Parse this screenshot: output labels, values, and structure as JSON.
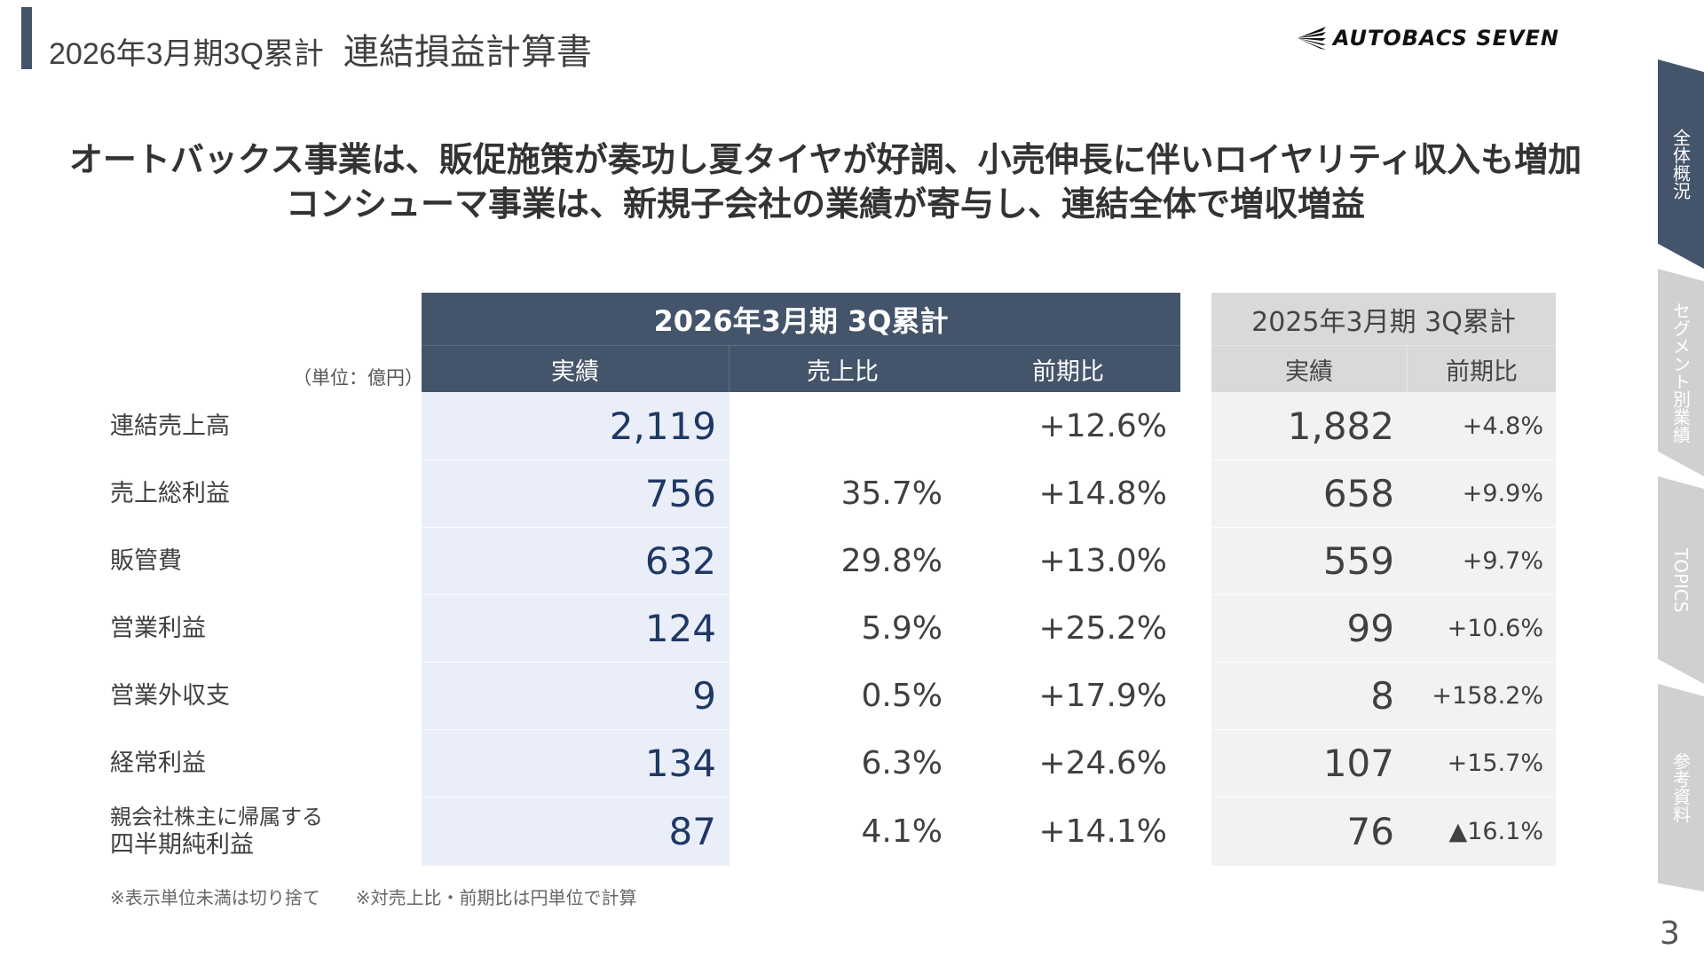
{
  "header": {
    "period": "2026年3月期3Q累計",
    "title": "連結損益計算書",
    "logo_text": "AUTOBACS SEVEN"
  },
  "headline": [
    "オートバックス事業は、販促施策が奏功し夏タイヤが好調、小売伸長に伴いロイヤリティ収入も増加",
    "コンシューマ事業は、新規子会社の業績が寄与し、連結全体で増収増益"
  ],
  "table": {
    "unit": "（単位：億円）",
    "current_header": "2026年3月期 3Q累計",
    "current_cols": [
      "実績",
      "売上比",
      "前期比"
    ],
    "prior_header": "2025年3月期 3Q累計",
    "prior_cols": [
      "実績",
      "前期比"
    ],
    "rows": [
      {
        "label": [
          "連結売上高"
        ],
        "actual": "2,119",
        "ratio": "",
        "yoy": "+12.6%",
        "prior": "1,882",
        "prior_yoy": "+4.8%"
      },
      {
        "label": [
          "売上総利益"
        ],
        "actual": "756",
        "ratio": "35.7%",
        "yoy": "+14.8%",
        "prior": "658",
        "prior_yoy": "+9.9%"
      },
      {
        "label": [
          "販管費"
        ],
        "actual": "632",
        "ratio": "29.8%",
        "yoy": "+13.0%",
        "prior": "559",
        "prior_yoy": "+9.7%"
      },
      {
        "label": [
          "営業利益"
        ],
        "actual": "124",
        "ratio": "5.9%",
        "yoy": "+25.2%",
        "prior": "99",
        "prior_yoy": "+10.6%"
      },
      {
        "label": [
          "営業外収支"
        ],
        "actual": "9",
        "ratio": "0.5%",
        "yoy": "+17.9%",
        "prior": "8",
        "prior_yoy": "+158.2%"
      },
      {
        "label": [
          "経常利益"
        ],
        "actual": "134",
        "ratio": "6.3%",
        "yoy": "+24.6%",
        "prior": "107",
        "prior_yoy": "+15.7%"
      },
      {
        "label": [
          "親会社株主に帰属する",
          "四半期純利益"
        ],
        "actual": "87",
        "ratio": "4.1%",
        "yoy": "+14.1%",
        "prior": "76",
        "prior_yoy": "▲16.1%"
      }
    ]
  },
  "footnote": "※表示単位未満は切り捨て　　※対売上比・前期比は円単位で計算",
  "side_tabs": [
    {
      "label": "全体概況",
      "active": true
    },
    {
      "label": "セグメント別業績",
      "active": false
    },
    {
      "label": "TOPICS",
      "active": false
    },
    {
      "label": "参考資料",
      "active": false
    }
  ],
  "page_number": "3",
  "colors": {
    "navy": "#44546a",
    "value_navy": "#1f3864",
    "current_body": "#e9eef8",
    "prior_header": "#d9d9d9",
    "prior_body": "#f2f2f2",
    "tab_inactive": "#d0d0d0"
  }
}
